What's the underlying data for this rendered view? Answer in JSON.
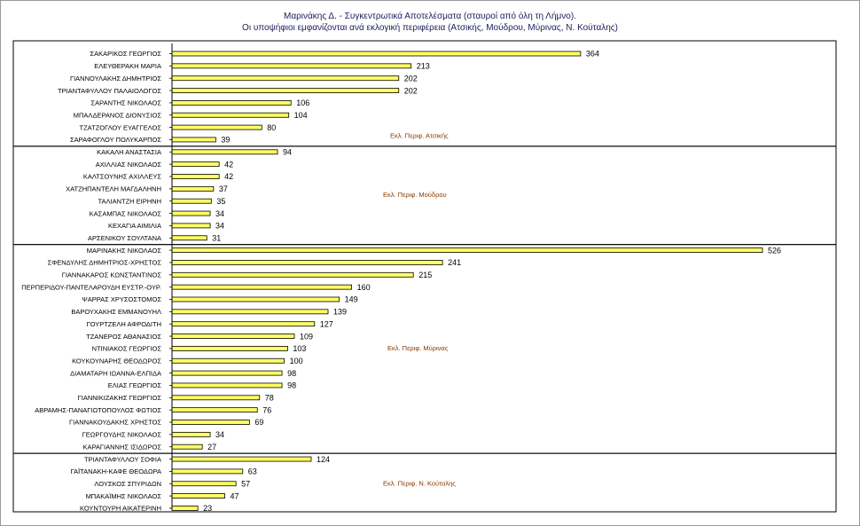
{
  "chart_data": {
    "type": "bar",
    "orientation": "horizontal",
    "title": "Μαρινάκης Δ. - Συγκεντρωτικά Αποτελέσματα (σταυροί από όλη τη Λήμνο).",
    "subtitle": "Οι υποψήφιοι εμφανίζονται ανά εκλογική περιφέρεια (Ατσικής, Μούδρου, Μύρινας, Ν. Κούταλης)",
    "bar_color": "#ffff66",
    "bar_edge_color": "#000000",
    "annotation_color": "#8a3a00",
    "groups": [
      {
        "label": "Εκλ. Περιφ. Ατσικής",
        "categories": [
          "ΣΑΚΑΡΙΚΟΣ ΓΕΩΡΓΙΟΣ",
          "ΕΛΕΥΘΕΡΑΚΗ ΜΑΡΙΑ",
          "ΓΙΑΝΝΟΥΛΑΚΗΣ ΔΗΜΗΤΡΙΟΣ",
          "ΤΡΙΑΝΤΑΦΥΛΛΟΥ ΠΑΛΑΙΟΛΟΓΟΣ",
          "ΣΑΡΑΝΤΗΣ ΝΙΚΟΛΑΟΣ",
          "ΜΠΑΛΔΕΡΑΝΟΣ ΔΙΟΝΥΣΙΟΣ",
          "ΤΖΑΤΖΟΓΛΟΥ ΕΥΑΓΓΕΛΟΣ",
          "ΣΑΡΑΦΟΓΛΟΥ ΠΟΛΥΚΑΡΠΟΣ"
        ],
        "values": [
          364,
          213,
          202,
          202,
          106,
          104,
          80,
          39
        ]
      },
      {
        "label": "Εκλ. Περιφ. Μούδρου",
        "categories": [
          "ΚΑΚΑΛΗ ΑΝΑΣΤΑΣΙΑ",
          "ΑΧΙΛΛΙΑΣ ΝΙΚΟΛΑΟΣ",
          "ΚΑΛΤΣΟΥΝΗΣ ΑΧΙΛΛΕΥΣ",
          "ΧΑΤΖΗΠΑΝΤΕΛΗ ΜΑΓΔΑΛΗΝΗ",
          "ΤΑΛΙΑΝΤΖΗ ΕΙΡΗΝΗ",
          "ΚΑΣΑΜΠΑΣ ΝΙΚΟΛΑΟΣ",
          "ΚΕΧΑΓΙΑ ΑΙΜΙΛΙΑ",
          "ΑΡΣΕΝΙΚΟΥ ΣΟΥΛΤΑΝΑ"
        ],
        "values": [
          94,
          42,
          42,
          37,
          35,
          34,
          34,
          31
        ]
      },
      {
        "label": "Εκλ. Περιφ. Μύρινας",
        "categories": [
          "ΜΑΡΙΝΑΚΗΣ ΝΙΚΟΛΑΟΣ",
          "ΣΦΕΝΔΥΛΗΣ ΔΗΜΗΤΡΙΟΣ-ΧΡΗΣΤΟΣ",
          "ΓΙΑΝΝΑΚΑΡΟΣ ΚΩΝΣΤΑΝΤΙΝΟΣ",
          "ΠΕΡΠΕΡΙΔΟΥ-ΠΑΝΤΕΛΑΡΟΥΔΗ ΕΥΣΤΡ.-ΟΥΡ.",
          "ΨΑΡΡΑΣ ΧΡΥΣΟΣΤΟΜΟΣ",
          "ΒΑΡΟΥΧΑΚΗΣ ΕΜΜΑΝΟΥΗΛ",
          "ΓΟΥΡΤΖΕΛΗ ΑΦΡΟΔΙΤΗ",
          "ΤΖΑΝΕΡΟΣ ΑΘΑΝΑΣΙΟΣ",
          "ΝΤΙΝΙΑΚΟΣ ΓΕΩΡΓΙΟΣ",
          "ΚΟΥΚΟΥΝΑΡΗΣ ΘΕΟΔΩΡΟΣ",
          "ΔΙΑΜΑΤΑΡΗ ΙΩΑΝΝΑ-ΕΛΠΙΔΑ",
          "ΕΛΙΑΣ ΓΕΩΡΓΙΟΣ",
          "ΓΙΑΝΝΙΚΙΖΑΚΗΣ ΓΕΩΡΓΙΟΣ",
          "ΑΒΡΑΜΗΣ-ΠΑΝΑΓΙΩΤΟΠΟΥΛΟΣ ΦΩΤΙΟΣ",
          "ΓΙΑΝΝΑΚΟΥΔΑΚΗΣ ΧΡΗΣΤΟΣ",
          "ΓΕΩΡΓΟΥΔΗΣ ΝΙΚΟΛΑΟΣ",
          "ΚΑΡΑΓΙΑΝΝΗΣ ΙΣΙΔΩΡΟΣ"
        ],
        "values": [
          526,
          241,
          215,
          160,
          149,
          139,
          127,
          109,
          103,
          100,
          98,
          98,
          78,
          76,
          69,
          34,
          27
        ]
      },
      {
        "label": "Εκλ. Περιφ. Ν. Κούταλης",
        "categories": [
          "ΤΡΙΑΝΤΑΦΥΛΛΟΥ ΣΟΦΙΑ",
          "ΓΑΪΤΑΝΑΚΗ-ΚΑΦΕ ΘΕΟΔΩΡΑ",
          "ΛΟΥΣΚΟΣ ΣΠΥΡΙΔΩΝ",
          "ΜΠΑΚΑΪΜΗΣ ΝΙΚΟΛΑΟΣ",
          "ΚΟΥΝΤΟΥΡΗ ΑΙΚΑΤΕΡΙΝΗ"
        ],
        "values": [
          124,
          63,
          57,
          47,
          23
        ]
      }
    ]
  }
}
